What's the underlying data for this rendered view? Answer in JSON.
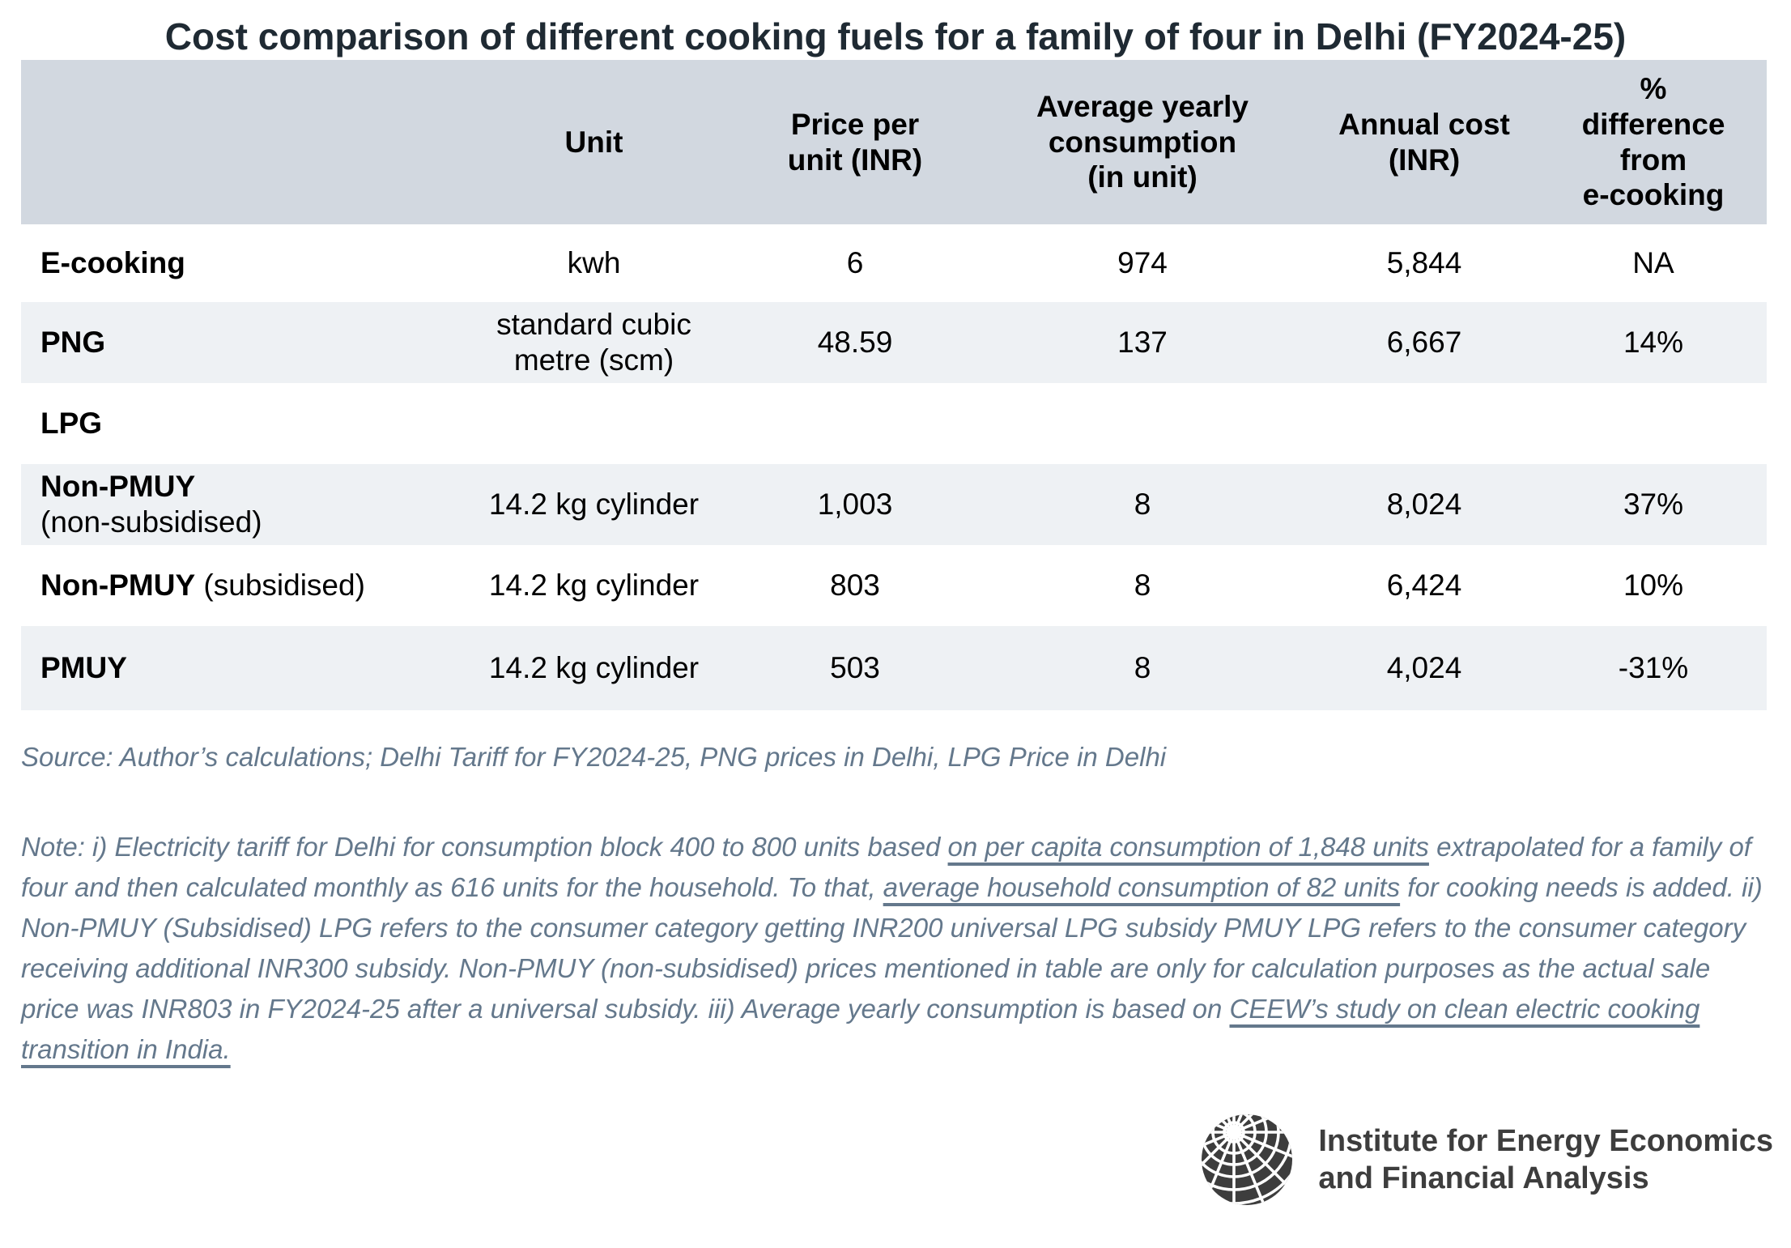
{
  "title": "Cost comparison of different cooking fuels for a family of four in Delhi (FY2024-25)",
  "colors": {
    "header_bg": "#d2d8e0",
    "row_shade": "#eef1f4",
    "title_text": "#1f2a33",
    "note_text": "#64788c",
    "logo_ink": "#3d3d3d"
  },
  "table": {
    "headers": {
      "fuel": "",
      "unit": "Unit",
      "price": "Price per\nunit (INR)",
      "consumption": "Average yearly\nconsumption\n(in unit)",
      "annual": "Annual cost\n(INR)",
      "diff": "%\ndifference\nfrom\ne-cooking"
    },
    "rows": [
      {
        "name": "E-cooking",
        "name2": "",
        "unit": "kwh",
        "price": "6",
        "consumption": "974",
        "annual": "5,844",
        "diff": "NA"
      },
      {
        "name": "PNG",
        "name2": "",
        "unit": "standard cubic\nmetre (scm)",
        "price": "48.59",
        "consumption": "137",
        "annual": "6,667",
        "diff": "14%"
      },
      {
        "name": "LPG",
        "name2": "",
        "unit": "",
        "price": "",
        "consumption": "",
        "annual": "",
        "diff": ""
      },
      {
        "name": "Non-PMUY",
        "name2": "(non-subsidised)",
        "unit": "14.2 kg cylinder",
        "price": "1,003",
        "consumption": "8",
        "annual": "8,024",
        "diff": "37%"
      },
      {
        "name": "Non-PMUY",
        "name2": " (subsidised)",
        "unit": "14.2 kg cylinder",
        "price": "803",
        "consumption": "8",
        "annual": "6,424",
        "diff": "10%"
      },
      {
        "name": "PMUY",
        "name2": "",
        "unit": "14.2 kg cylinder",
        "price": "503",
        "consumption": "8",
        "annual": "4,024",
        "diff": "-31%"
      }
    ]
  },
  "source": "Source: Author’s calculations; Delhi Tariff for FY2024-25, PNG prices in Delhi, LPG Price in Delhi",
  "note": {
    "segments": [
      {
        "t": "Note: i) Electricity tariff for Delhi for consumption block 400 to 800 units based "
      },
      {
        "t": "on per capita consumption of 1,848 units",
        "u": true
      },
      {
        "t": " extrapolated for a family of four and then calculated monthly as 616 units for the household. To that, "
      },
      {
        "t": "average household consumption of 82 units",
        "u": true
      },
      {
        "t": " for cooking needs is added. ii) Non-PMUY (Subsidised) LPG refers to the consumer category getting INR200 universal LPG subsidy PMUY LPG refers to the consumer category receiving additional INR300 subsidy. Non-PMUY (non-subsidised) prices mentioned in table are only for calculation purposes as the actual sale price was INR803 in FY2024-25 after a universal subsidy. iii) Average yearly consumption is based on "
      },
      {
        "t": "CEEW’s study on clean electric cooking transition in India.",
        "u": true
      }
    ]
  },
  "logo": {
    "icon": "globe-grid",
    "line1": "Institute for Energy Economics",
    "line2": "and Financial Analysis"
  }
}
